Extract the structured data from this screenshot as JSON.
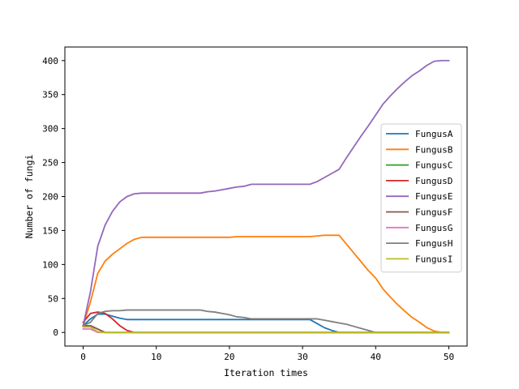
{
  "chart_data": {
    "type": "line",
    "xlabel": "Iteration times",
    "ylabel": "Number of fungi",
    "xlim": [
      -2.5,
      52.5
    ],
    "ylim": [
      -20,
      420
    ],
    "xticks": [
      0,
      10,
      20,
      30,
      40,
      50
    ],
    "yticks": [
      0,
      50,
      100,
      150,
      200,
      250,
      300,
      350,
      400
    ],
    "grid": false,
    "legend": "center-right",
    "x": [
      0,
      1,
      2,
      3,
      4,
      5,
      6,
      7,
      8,
      9,
      10,
      11,
      12,
      13,
      14,
      15,
      16,
      17,
      18,
      19,
      20,
      21,
      22,
      23,
      24,
      25,
      26,
      27,
      28,
      29,
      30,
      31,
      32,
      33,
      34,
      35,
      36,
      37,
      38,
      39,
      40,
      41,
      42,
      43,
      44,
      45,
      46,
      47,
      48,
      49,
      50
    ],
    "series": [
      {
        "name": "FungusA",
        "color": "#1f77b4",
        "values": [
          10,
          20,
          27,
          27,
          24,
          21,
          19,
          19,
          19,
          19,
          19,
          19,
          19,
          19,
          19,
          19,
          19,
          19,
          19,
          19,
          19,
          19,
          19,
          19,
          19,
          19,
          19,
          19,
          19,
          19,
          19,
          19,
          13,
          7,
          3,
          0,
          0,
          0,
          0,
          0,
          0,
          0,
          0,
          0,
          0,
          0,
          0,
          0,
          0,
          0,
          0
        ]
      },
      {
        "name": "FungusB",
        "color": "#ff7f0e",
        "values": [
          10,
          45,
          87,
          105,
          115,
          123,
          131,
          137,
          140,
          140,
          140,
          140,
          140,
          140,
          140,
          140,
          140,
          140,
          140,
          140,
          140,
          141,
          141,
          141,
          141,
          141,
          141,
          141,
          141,
          141,
          141,
          141,
          142,
          143,
          143,
          143,
          130,
          117,
          104,
          91,
          80,
          64,
          52,
          41,
          31,
          22,
          15,
          7,
          2,
          0,
          0
        ]
      },
      {
        "name": "FungusC",
        "color": "#2ca02c",
        "values": [
          10,
          10,
          5,
          0,
          0,
          0,
          0,
          0,
          0,
          0,
          0,
          0,
          0,
          0,
          0,
          0,
          0,
          0,
          0,
          0,
          0,
          0,
          0,
          0,
          0,
          0,
          0,
          0,
          0,
          0,
          0,
          0,
          0,
          0,
          0,
          0,
          0,
          0,
          0,
          0,
          0,
          0,
          0,
          0,
          0,
          0,
          0,
          0,
          0,
          0,
          0
        ]
      },
      {
        "name": "FungusD",
        "color": "#d62728",
        "values": [
          15,
          28,
          30,
          28,
          20,
          10,
          3,
          0,
          0,
          0,
          0,
          0,
          0,
          0,
          0,
          0,
          0,
          0,
          0,
          0,
          0,
          0,
          0,
          0,
          0,
          0,
          0,
          0,
          0,
          0,
          0,
          0,
          0,
          0,
          0,
          0,
          0,
          0,
          0,
          0,
          0,
          0,
          0,
          0,
          0,
          0,
          0,
          0,
          0,
          0,
          0
        ]
      },
      {
        "name": "FungusE",
        "color": "#9467bd",
        "values": [
          10,
          60,
          127,
          158,
          178,
          192,
          200,
          204,
          205,
          205,
          205,
          205,
          205,
          205,
          205,
          205,
          205,
          207,
          208,
          210,
          212,
          214,
          215,
          218,
          218,
          218,
          218,
          218,
          218,
          218,
          218,
          218,
          222,
          228,
          234,
          240,
          257,
          273,
          289,
          304,
          320,
          336,
          348,
          359,
          369,
          378,
          385,
          393,
          399,
          400,
          400
        ]
      },
      {
        "name": "FungusF",
        "color": "#8c564b",
        "values": [
          10,
          10,
          5,
          0,
          0,
          0,
          0,
          0,
          0,
          0,
          0,
          0,
          0,
          0,
          0,
          0,
          0,
          0,
          0,
          0,
          0,
          0,
          0,
          0,
          0,
          0,
          0,
          0,
          0,
          0,
          0,
          0,
          0,
          0,
          0,
          0,
          0,
          0,
          0,
          0,
          0,
          0,
          0,
          0,
          0,
          0,
          0,
          0,
          0,
          0,
          0
        ]
      },
      {
        "name": "FungusG",
        "color": "#e377c2",
        "values": [
          5,
          5,
          0,
          0,
          0,
          0,
          0,
          0,
          0,
          0,
          0,
          0,
          0,
          0,
          0,
          0,
          0,
          0,
          0,
          0,
          0,
          0,
          0,
          0,
          0,
          0,
          0,
          0,
          0,
          0,
          0,
          0,
          0,
          0,
          0,
          0,
          0,
          0,
          0,
          0,
          0,
          0,
          0,
          0,
          0,
          0,
          0,
          0,
          0,
          0,
          0
        ]
      },
      {
        "name": "FungusH",
        "color": "#7f7f7f",
        "values": [
          10,
          15,
          28,
          31,
          32,
          32,
          33,
          33,
          33,
          33,
          33,
          33,
          33,
          33,
          33,
          33,
          33,
          31,
          30,
          28,
          26,
          23,
          22,
          20,
          20,
          20,
          20,
          20,
          20,
          20,
          20,
          20,
          20,
          18,
          16,
          14,
          12,
          9,
          6,
          3,
          0,
          0,
          0,
          0,
          0,
          0,
          0,
          0,
          0,
          0,
          0
        ]
      },
      {
        "name": "FungusI",
        "color": "#bcbd22",
        "values": [
          8,
          8,
          1,
          0,
          0,
          0,
          0,
          0,
          0,
          0,
          0,
          0,
          0,
          0,
          0,
          0,
          0,
          0,
          0,
          0,
          0,
          0,
          0,
          0,
          0,
          0,
          0,
          0,
          0,
          0,
          0,
          0,
          0,
          0,
          0,
          0,
          0,
          0,
          0,
          0,
          0,
          0,
          0,
          0,
          0,
          0,
          0,
          0,
          0,
          0,
          0
        ]
      }
    ]
  }
}
